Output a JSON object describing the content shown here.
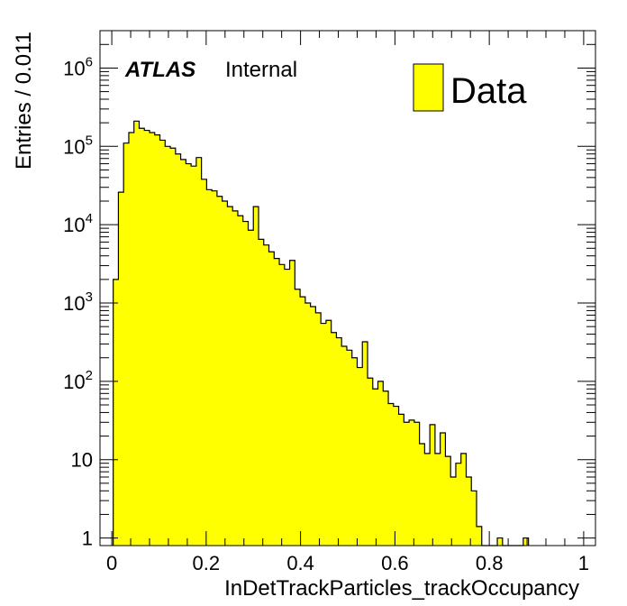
{
  "chart_data": {
    "type": "bar",
    "subtype": "histogram",
    "xlabel": "InDetTrackParticles_trackOccupancy",
    "ylabel": "Entries / 0.011",
    "xlim": [
      -0.025,
      1.025
    ],
    "ylim": [
      0.8,
      3000000
    ],
    "y_scale": "log",
    "grid": false,
    "legend_position": "top-right",
    "bin_width": 0.011,
    "x_ticks": [
      {
        "value": 0,
        "label": "0"
      },
      {
        "value": 0.2,
        "label": "0.2"
      },
      {
        "value": 0.4,
        "label": "0.4"
      },
      {
        "value": 0.6,
        "label": "0.6"
      },
      {
        "value": 0.8,
        "label": "0.8"
      },
      {
        "value": 1,
        "label": "1"
      }
    ],
    "y_ticks": [
      {
        "value": 1,
        "mantissa": "1",
        "exponent": ""
      },
      {
        "value": 10,
        "mantissa": "10",
        "exponent": ""
      },
      {
        "value": 100,
        "mantissa": "10",
        "exponent": "2"
      },
      {
        "value": 1000,
        "mantissa": "10",
        "exponent": "3"
      },
      {
        "value": 10000,
        "mantissa": "10",
        "exponent": "4"
      },
      {
        "value": 100000,
        "mantissa": "10",
        "exponent": "5"
      },
      {
        "value": 1000000,
        "mantissa": "10",
        "exponent": "6"
      }
    ],
    "series": [
      {
        "name": "Data",
        "color": "#ffff00",
        "edges": [
          0.003,
          0.014,
          0.025,
          0.036,
          0.047,
          0.058,
          0.069,
          0.08,
          0.091,
          0.102,
          0.113,
          0.124,
          0.135,
          0.146,
          0.157,
          0.168,
          0.179,
          0.19,
          0.201,
          0.212,
          0.223,
          0.234,
          0.245,
          0.256,
          0.267,
          0.278,
          0.289,
          0.3,
          0.311,
          0.322,
          0.333,
          0.344,
          0.355,
          0.366,
          0.377,
          0.388,
          0.399,
          0.41,
          0.421,
          0.432,
          0.443,
          0.454,
          0.465,
          0.476,
          0.487,
          0.498,
          0.509,
          0.52,
          0.531,
          0.542,
          0.553,
          0.564,
          0.575,
          0.586,
          0.597,
          0.608,
          0.619,
          0.63,
          0.641,
          0.652,
          0.663,
          0.674,
          0.685,
          0.696,
          0.707,
          0.718,
          0.729,
          0.74,
          0.751,
          0.762,
          0.773,
          0.784,
          0.795,
          0.806,
          0.817,
          0.828,
          0.839,
          0.85,
          0.861,
          0.872,
          0.883
        ],
        "values": [
          2000,
          26000,
          110000,
          150000,
          210000,
          170000,
          160000,
          150000,
          140000,
          120000,
          100000,
          95000,
          80000,
          68000,
          60000,
          56000,
          72000,
          38000,
          28000,
          27000,
          23000,
          20000,
          17000,
          15000,
          13000,
          11000,
          8500,
          17000,
          6500,
          5500,
          4500,
          3700,
          3100,
          2700,
          3500,
          1500,
          1200,
          1000,
          900,
          750,
          550,
          600,
          420,
          360,
          280,
          250,
          200,
          150,
          320,
          110,
          80,
          100,
          75,
          52,
          48,
          38,
          30,
          32,
          30,
          16,
          12,
          28,
          12,
          22,
          11,
          6,
          9,
          12,
          6,
          4,
          1.4,
          0,
          0,
          0,
          1,
          0,
          0,
          0,
          0,
          1
        ]
      }
    ]
  },
  "annotations": {
    "experiment": "ATLAS",
    "status": "Internal"
  },
  "legend": {
    "entries": [
      {
        "label": "Data",
        "color": "#ffff00"
      }
    ]
  }
}
